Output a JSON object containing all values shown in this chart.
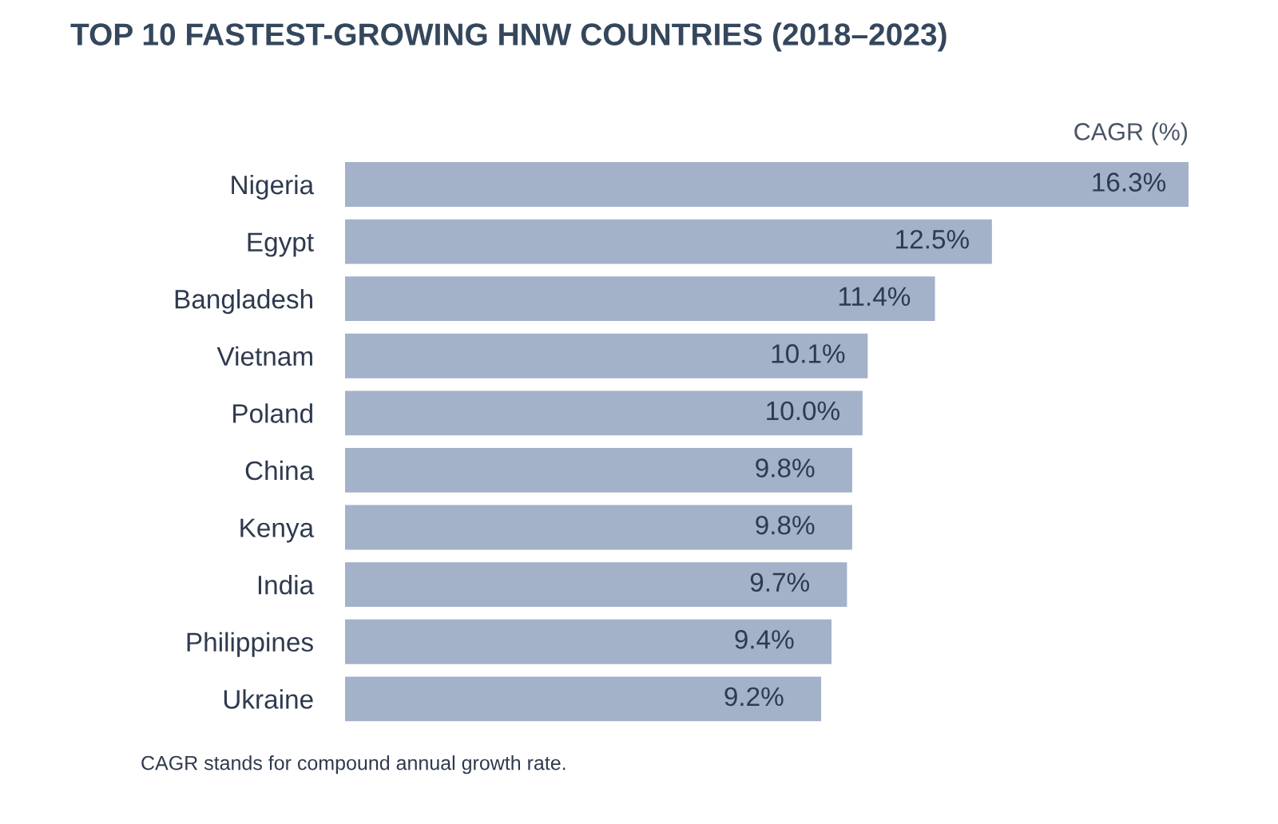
{
  "chart_data": {
    "type": "bar",
    "orientation": "horizontal",
    "title": "TOP 10 FASTEST-GROWING HNW COUNTRIES (2018–2023)",
    "xlabel": "CAGR (%)",
    "categories": [
      "Nigeria",
      "Egypt",
      "Bangladesh",
      "Vietnam",
      "Poland",
      "China",
      "Kenya",
      "India",
      "Philippines",
      "Ukraine"
    ],
    "values": [
      16.3,
      12.5,
      11.4,
      10.1,
      10.0,
      9.8,
      9.8,
      9.7,
      9.4,
      9.2
    ],
    "value_labels": [
      "16.3%",
      "12.5%",
      "11.4%",
      "10.1%",
      "10.0%",
      "9.8%",
      "9.8%",
      "9.7%",
      "9.4%",
      "9.2%"
    ],
    "color": "#a3b1c9",
    "grid": false,
    "legend": false,
    "annotations": [
      "CAGR stands for compound annual growth rate."
    ]
  }
}
